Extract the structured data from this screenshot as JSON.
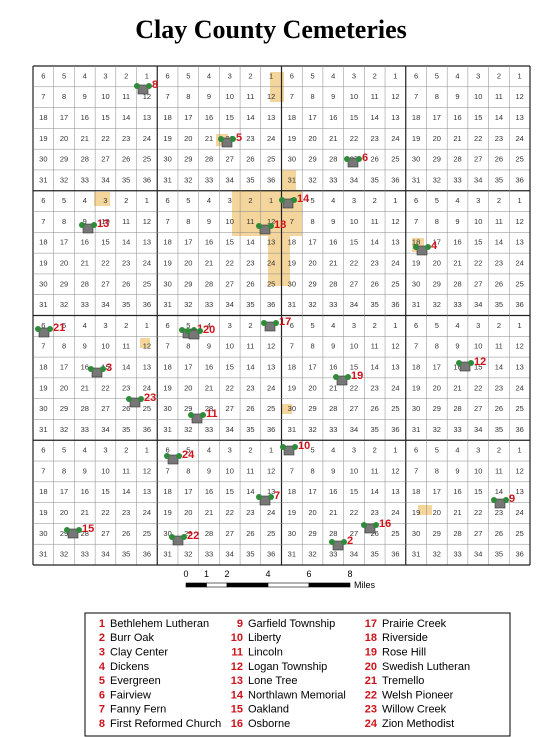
{
  "title": "Clay County Cemeteries",
  "section_numbers": [
    [
      6,
      5,
      4,
      3,
      2,
      1
    ],
    [
      7,
      8,
      9,
      10,
      11,
      12
    ],
    [
      18,
      17,
      16,
      15,
      14,
      13
    ],
    [
      19,
      20,
      21,
      22,
      23,
      24
    ],
    [
      30,
      29,
      28,
      27,
      26,
      25
    ],
    [
      31,
      32,
      33,
      34,
      35,
      36
    ]
  ],
  "scale": {
    "ticks": [
      0,
      1,
      2,
      4,
      6,
      8
    ],
    "unit": "Miles"
  },
  "legend": {
    "items": [
      {
        "number": "1",
        "name": "Bethlehem Lutheran"
      },
      {
        "number": "2",
        "name": "Burr Oak"
      },
      {
        "number": "3",
        "name": "Clay Center"
      },
      {
        "number": "4",
        "name": "Dickens"
      },
      {
        "number": "5",
        "name": "Evergreen"
      },
      {
        "number": "6",
        "name": "Fairview"
      },
      {
        "number": "7",
        "name": "Fanny Fern"
      },
      {
        "number": "8",
        "name": "First Reformed Church"
      },
      {
        "number": "9",
        "name": "Garfield Township"
      },
      {
        "number": "10",
        "name": "Liberty"
      },
      {
        "number": "11",
        "name": "Lincoln"
      },
      {
        "number": "12",
        "name": "Logan Township"
      },
      {
        "number": "13",
        "name": "Lone Tree"
      },
      {
        "number": "14",
        "name": "Northlawn Memorial"
      },
      {
        "number": "15",
        "name": "Oakland"
      },
      {
        "number": "16",
        "name": "Osborne"
      },
      {
        "number": "17",
        "name": "Prairie Creek"
      },
      {
        "number": "18",
        "name": "Riverside"
      },
      {
        "number": "19",
        "name": "Rose Hill"
      },
      {
        "number": "20",
        "name": "Swedish Lutheran"
      },
      {
        "number": "21",
        "name": "Tremello"
      },
      {
        "number": "22",
        "name": "Welsh Pioneer"
      },
      {
        "number": "23",
        "name": "Willow Creek"
      },
      {
        "number": "24",
        "name": "Zion Methodist"
      }
    ]
  }
}
